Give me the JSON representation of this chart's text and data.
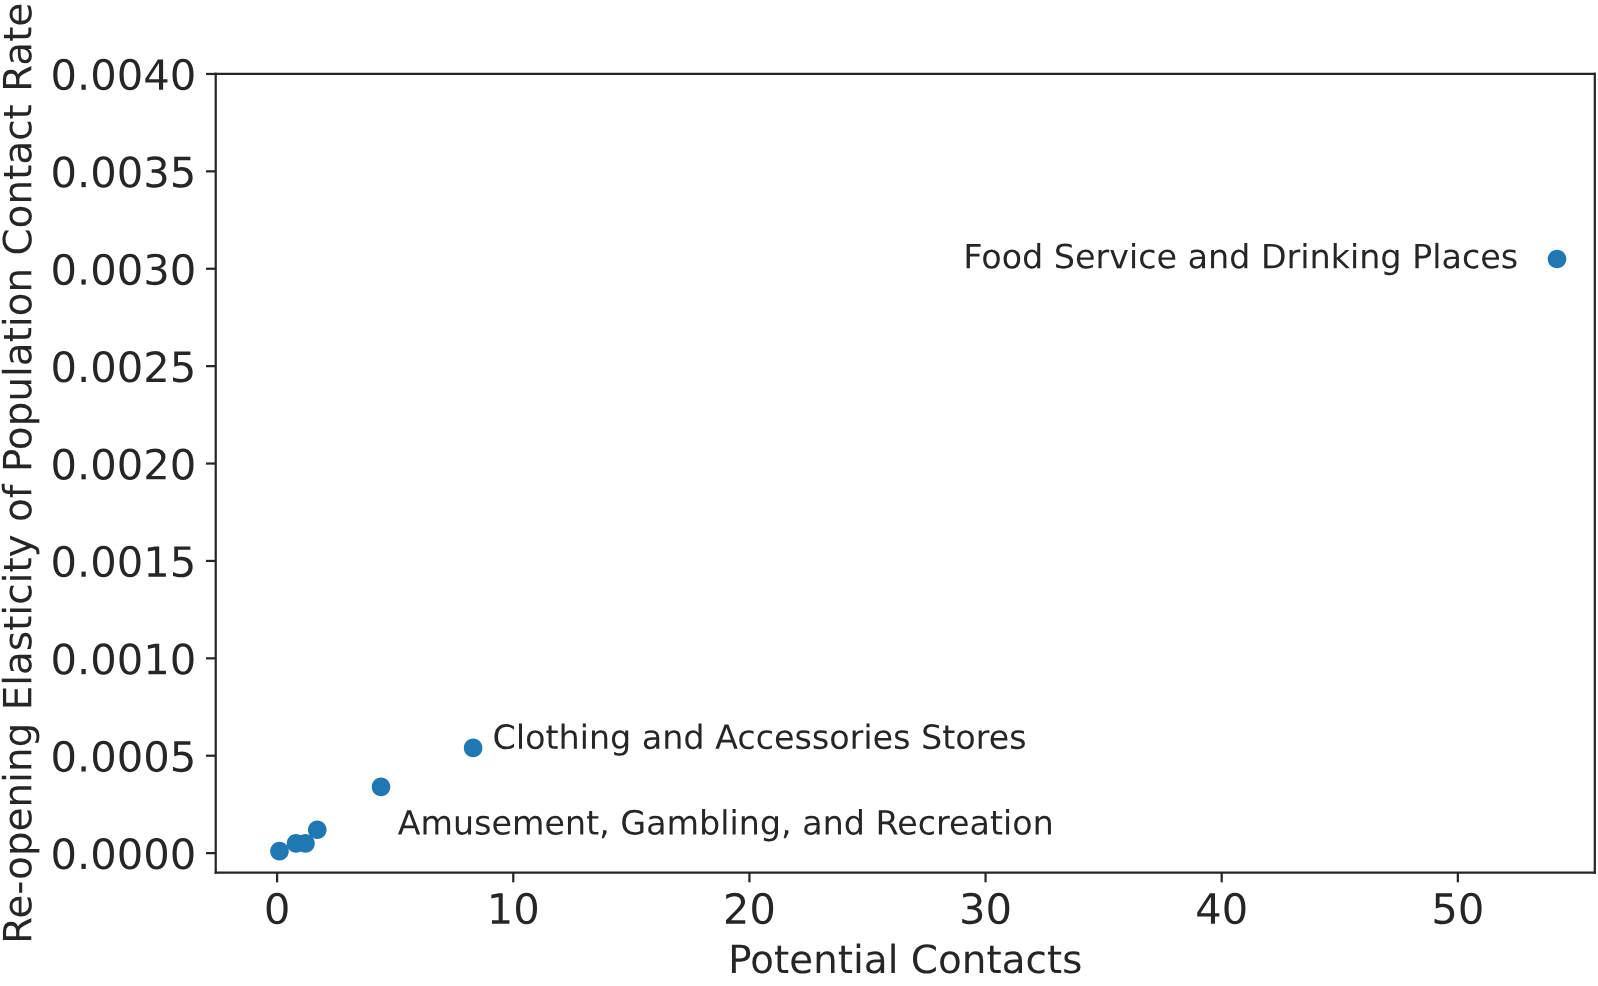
{
  "chart_data": {
    "type": "scatter",
    "xlabel": "Potential Contacts",
    "ylabel": "Re-opening Elasticity of Population Contact Rate",
    "series": [
      {
        "color": "#1f77b4",
        "x": [
          0.1,
          0.8,
          1.2,
          1.7,
          4.4,
          8.3,
          54.2
        ],
        "values": [
          1e-05,
          5e-05,
          5e-05,
          0.00012,
          0.00034,
          0.00054,
          0.00305
        ]
      }
    ],
    "xlim": [
      -2.6,
      55.8
    ],
    "ylim": [
      -0.0001,
      0.004
    ],
    "xticks": [
      0,
      10,
      20,
      30,
      40,
      50
    ],
    "yticks": [
      {
        "value": 0,
        "label": "0.0000"
      },
      {
        "value": 0.0005,
        "label": "0.0005"
      },
      {
        "value": 0.001,
        "label": "0.0010"
      },
      {
        "value": 0.0015,
        "label": "0.0015"
      },
      {
        "value": 0.002,
        "label": "0.0020"
      },
      {
        "value": 0.0025,
        "label": "0.0025"
      },
      {
        "value": 0.003,
        "label": "0.0030"
      },
      {
        "value": 0.0035,
        "label": "0.0035"
      },
      {
        "value": 0.004,
        "label": "0.0040"
      }
    ],
    "annotations": [
      {
        "text": "Food Service and Drinking Places",
        "x": 54.2,
        "y": 0.00305
      },
      {
        "text": "Clothing and Accessories Stores",
        "x": 8.3,
        "y": 0.00054
      },
      {
        "text": "Amusement, Gambling, and Recreation",
        "x": 4.4,
        "y": 0.00034
      }
    ],
    "grid": false,
    "legend": false,
    "marker": "circle"
  }
}
